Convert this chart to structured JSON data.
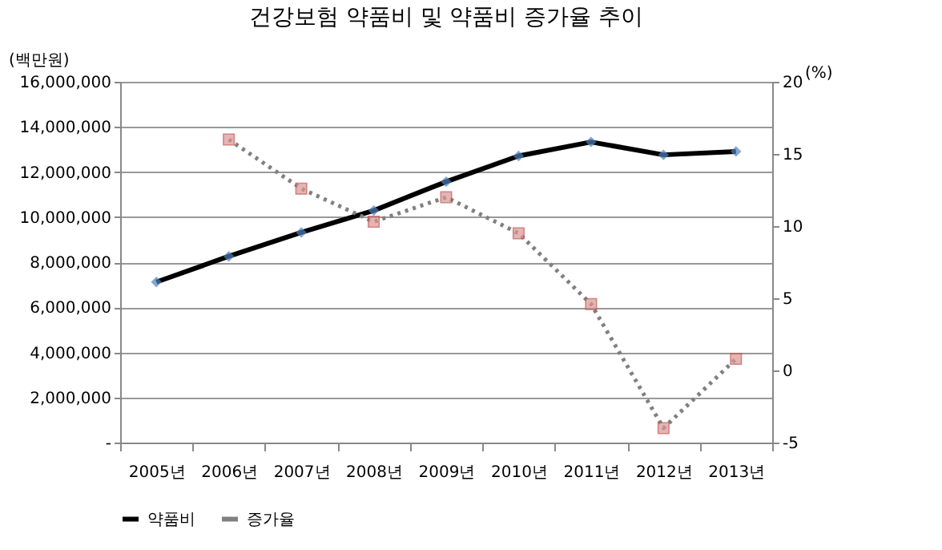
{
  "chart_data": {
    "type": "line",
    "title": "건강보험 약품비 및 약품비 증가율 추이",
    "ylabel": "(백만원)",
    "y2label": "(%)",
    "categories": [
      "2005년",
      "2006년",
      "2007년",
      "2008년",
      "2009년",
      "2010년",
      "2011년",
      "2012년",
      "2013년"
    ],
    "series": [
      {
        "name": "약품비",
        "color": "#000000",
        "marker": "diamond",
        "line_style": "solid",
        "values": [
          7120000,
          8260000,
          9320000,
          10290000,
          11570000,
          12710000,
          13330000,
          12760000,
          12910000
        ]
      },
      {
        "name": "증가율",
        "color": "#808080",
        "marker": "square",
        "line_style": "dotted",
        "axis": "y2",
        "values": [
          null,
          16.0,
          12.6,
          10.3,
          12.0,
          9.5,
          4.6,
          -4.0,
          0.8
        ]
      }
    ],
    "ylim": [
      0,
      16000000
    ],
    "yticks": [
      {
        "value": 0,
        "label": "-"
      },
      {
        "value": 2000000,
        "label": "2,000,000"
      },
      {
        "value": 4000000,
        "label": "4,000,000"
      },
      {
        "value": 6000000,
        "label": "6,000,000"
      },
      {
        "value": 8000000,
        "label": "8,000,000"
      },
      {
        "value": 10000000,
        "label": "10,000,000"
      },
      {
        "value": 12000000,
        "label": "12,000,000"
      },
      {
        "value": 14000000,
        "label": "14,000,000"
      },
      {
        "value": 16000000,
        "label": "16,000,000"
      }
    ],
    "y2lim": [
      -5,
      20
    ],
    "y2ticks": [
      -5,
      0,
      5,
      10,
      15,
      20
    ],
    "grid": "y",
    "legend": "bottom"
  }
}
